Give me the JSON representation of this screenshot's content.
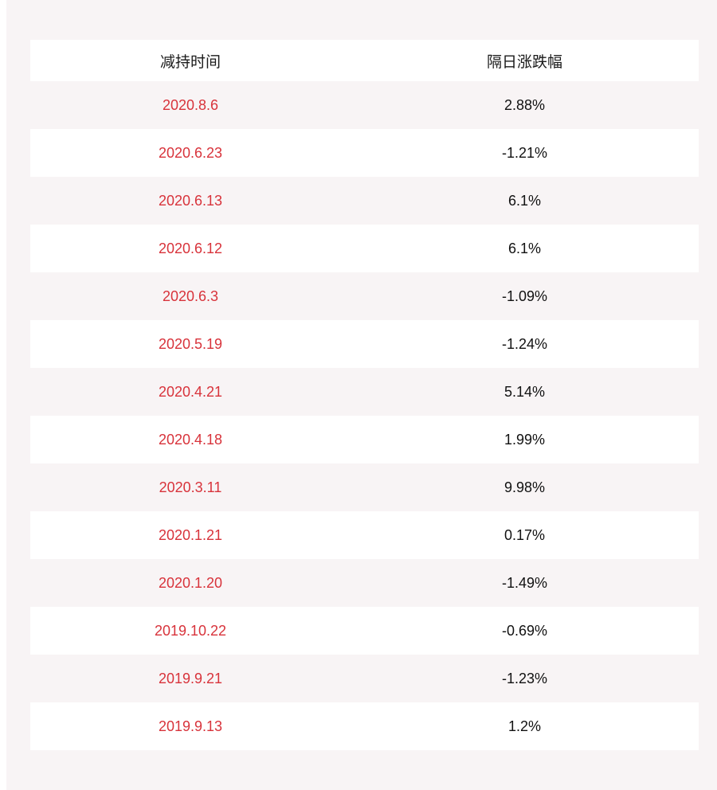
{
  "colors": {
    "background": "#f8f4f5",
    "row_alt": "#ffffff",
    "date_text": "#d8333b",
    "value_text": "#111111"
  },
  "table": {
    "headers": [
      "减持时间",
      "隔日涨跌幅"
    ],
    "rows": [
      {
        "date": "2020.8.6",
        "change": "2.88%"
      },
      {
        "date": "2020.6.23",
        "change": "-1.21%"
      },
      {
        "date": "2020.6.13",
        "change": "6.1%"
      },
      {
        "date": "2020.6.12",
        "change": "6.1%"
      },
      {
        "date": "2020.6.3",
        "change": "-1.09%"
      },
      {
        "date": "2020.5.19",
        "change": "-1.24%"
      },
      {
        "date": "2020.4.21",
        "change": "5.14%"
      },
      {
        "date": "2020.4.18",
        "change": "1.99%"
      },
      {
        "date": "2020.3.11",
        "change": "9.98%"
      },
      {
        "date": "2020.1.21",
        "change": "0.17%"
      },
      {
        "date": "2020.1.20",
        "change": "-1.49%"
      },
      {
        "date": "2019.10.22",
        "change": "-0.69%"
      },
      {
        "date": "2019.9.21",
        "change": "-1.23%"
      },
      {
        "date": "2019.9.13",
        "change": "1.2%"
      }
    ]
  }
}
